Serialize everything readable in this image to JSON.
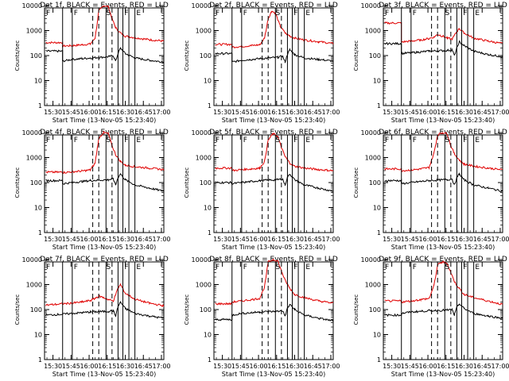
{
  "chart_data": [
    {
      "type": "line",
      "title": "Det 1f, BLACK = Events, RED = LLD",
      "xlabel": "Start Time (13-Nov-05 15:23:40)",
      "ylabel": "Counts/sec",
      "yscale": "log",
      "ylim": [
        1,
        10000
      ],
      "xlim": [
        "15:23",
        "17:02"
      ],
      "x_ticks": [
        "15:30",
        "15:45",
        "16:00",
        "16:15",
        "16:30",
        "16:45",
        "17:00"
      ],
      "y_ticks": [
        "1",
        "10",
        "100",
        "1000",
        "10000"
      ],
      "markers": [
        "F",
        "F",
        "S",
        "F",
        "E"
      ],
      "series": [
        {
          "name": "LLD",
          "color": "#e00000",
          "x": [
            "15:24",
            "15:38",
            "15:38",
            "15:46",
            "15:54",
            "16:01",
            "16:05",
            "16:08",
            "16:12",
            "16:16",
            "16:19",
            "16:22",
            "16:26",
            "16:30",
            "16:38",
            "16:50",
            "17:02"
          ],
          "values": [
            330,
            330,
            240,
            250,
            270,
            290,
            500,
            6000,
            10000,
            9000,
            3000,
            1300,
            800,
            600,
            520,
            430,
            380
          ]
        },
        {
          "name": "Events",
          "color": "#000000",
          "x": [
            "15:24",
            "15:38",
            "15:38",
            "15:46",
            "15:54",
            "16:01",
            "16:16",
            "16:20",
            "16:22",
            "16:24",
            "16:26",
            "16:30",
            "16:38",
            "16:50",
            "17:02"
          ],
          "values": [
            150,
            150,
            60,
            70,
            75,
            80,
            90,
            100,
            60,
            120,
            200,
            120,
            80,
            65,
            55
          ]
        }
      ]
    },
    {
      "type": "line",
      "title": "Det 2f, BLACK = Events, RED = LLD",
      "xlabel": "Start Time (13-Nov-05 15:23:40)",
      "ylabel": "Counts/sec",
      "yscale": "log",
      "ylim": [
        1,
        10000
      ],
      "xlim": [
        "15:23",
        "17:02"
      ],
      "x_ticks": [
        "15:30",
        "15:45",
        "16:00",
        "16:15",
        "16:30",
        "16:45",
        "17:00"
      ],
      "y_ticks": [
        "1",
        "10",
        "100",
        "1000",
        "10000"
      ],
      "markers": [
        "F",
        "F",
        "S",
        "F",
        "E"
      ],
      "series": [
        {
          "name": "LLD",
          "color": "#e00000",
          "x": [
            "15:24",
            "15:38",
            "15:38",
            "15:46",
            "15:54",
            "16:01",
            "16:05",
            "16:08",
            "16:11",
            "16:14",
            "16:18",
            "16:22",
            "16:26",
            "16:30",
            "16:38",
            "16:50",
            "17:02"
          ],
          "values": [
            280,
            280,
            220,
            230,
            250,
            270,
            500,
            3000,
            6000,
            5000,
            1500,
            800,
            600,
            500,
            420,
            360,
            300
          ]
        },
        {
          "name": "Events",
          "color": "#000000",
          "x": [
            "15:24",
            "15:38",
            "15:38",
            "15:46",
            "15:54",
            "16:01",
            "16:16",
            "16:20",
            "16:22",
            "16:24",
            "16:26",
            "16:30",
            "16:38",
            "16:50",
            "17:02"
          ],
          "values": [
            120,
            120,
            55,
            65,
            70,
            75,
            85,
            95,
            55,
            110,
            170,
            110,
            80,
            70,
            60
          ]
        }
      ]
    },
    {
      "type": "line",
      "title": "Det 3f, BLACK = Events, RED = LLD",
      "xlabel": "Start Time (13-Nov-05 15:23:40)",
      "ylabel": "Counts/sec",
      "yscale": "log",
      "ylim": [
        1,
        10000
      ],
      "xlim": [
        "15:23",
        "17:02"
      ],
      "x_ticks": [
        "15:30",
        "15:45",
        "16:00",
        "16:15",
        "16:30",
        "16:45",
        "17:00"
      ],
      "y_ticks": [
        "1",
        "10",
        "100",
        "1000",
        "10000"
      ],
      "markers": [
        "F",
        "F",
        "S",
        "F",
        "E"
      ],
      "series": [
        {
          "name": "LLD",
          "color": "#e00000",
          "x": [
            "15:24",
            "15:38",
            "15:38",
            "15:46",
            "15:54",
            "16:01",
            "16:05",
            "16:08",
            "16:12",
            "16:16",
            "16:20",
            "16:24",
            "16:26",
            "16:30",
            "16:38",
            "16:50",
            "17:02"
          ],
          "values": [
            2000,
            2000,
            350,
            380,
            420,
            480,
            550,
            700,
            600,
            500,
            450,
            900,
            1200,
            800,
            500,
            380,
            300
          ]
        },
        {
          "name": "Events",
          "color": "#000000",
          "x": [
            "15:24",
            "15:38",
            "15:38",
            "15:46",
            "15:54",
            "16:01",
            "16:16",
            "16:20",
            "16:22",
            "16:24",
            "16:26",
            "16:30",
            "16:38",
            "16:50",
            "17:02"
          ],
          "values": [
            300,
            300,
            120,
            130,
            140,
            150,
            160,
            170,
            100,
            200,
            350,
            250,
            150,
            110,
            90
          ]
        }
      ]
    },
    {
      "type": "line",
      "title": "Det 4f, BLACK = Events, RED = LLD",
      "xlabel": "Start Time (13-Nov-05 15:23:40)",
      "ylabel": "Counts/sec",
      "yscale": "log",
      "ylim": [
        1,
        10000
      ],
      "xlim": [
        "15:23",
        "17:02"
      ],
      "x_ticks": [
        "15:30",
        "15:45",
        "16:00",
        "16:15",
        "16:30",
        "16:45",
        "17:00"
      ],
      "y_ticks": [
        "1",
        "10",
        "100",
        "1000",
        "10000"
      ],
      "markers": [
        "F",
        "F",
        "S",
        "F",
        "E"
      ],
      "series": [
        {
          "name": "LLD",
          "color": "#e00000",
          "x": [
            "15:24",
            "15:38",
            "15:38",
            "15:46",
            "15:54",
            "16:01",
            "16:05",
            "16:08",
            "16:12",
            "16:16",
            "16:19",
            "16:22",
            "16:26",
            "16:30",
            "16:38",
            "16:50",
            "17:02"
          ],
          "values": [
            260,
            260,
            250,
            270,
            290,
            320,
            600,
            6000,
            10000,
            9000,
            3000,
            1300,
            700,
            500,
            430,
            380,
            330
          ]
        },
        {
          "name": "Events",
          "color": "#000000",
          "x": [
            "15:24",
            "15:38",
            "15:38",
            "15:46",
            "15:54",
            "16:01",
            "16:16",
            "16:20",
            "16:22",
            "16:24",
            "16:26",
            "16:30",
            "16:38",
            "16:50",
            "17:02"
          ],
          "values": [
            120,
            120,
            90,
            100,
            110,
            120,
            130,
            140,
            80,
            160,
            220,
            130,
            80,
            60,
            45
          ]
        }
      ]
    },
    {
      "type": "line",
      "title": "Det 5f, BLACK = Events, RED = LLD",
      "xlabel": "Start Time (13-Nov-05 15:23:40)",
      "ylabel": "Counts/sec",
      "yscale": "log",
      "ylim": [
        1,
        10000
      ],
      "xlim": [
        "15:23",
        "17:02"
      ],
      "x_ticks": [
        "15:30",
        "15:45",
        "16:00",
        "16:15",
        "16:30",
        "16:45",
        "17:00"
      ],
      "y_ticks": [
        "1",
        "10",
        "100",
        "1000",
        "10000"
      ],
      "markers": [
        "F",
        "F",
        "S",
        "F",
        "E"
      ],
      "series": [
        {
          "name": "LLD",
          "color": "#e00000",
          "x": [
            "15:24",
            "15:38",
            "15:38",
            "15:46",
            "15:54",
            "16:01",
            "16:05",
            "16:08",
            "16:12",
            "16:16",
            "16:19",
            "16:22",
            "16:26",
            "16:30",
            "16:38",
            "16:50",
            "17:02"
          ],
          "values": [
            380,
            380,
            300,
            330,
            350,
            380,
            700,
            5000,
            9000,
            7000,
            2500,
            1100,
            600,
            450,
            380,
            330,
            300
          ]
        },
        {
          "name": "Events",
          "color": "#000000",
          "x": [
            "15:24",
            "15:38",
            "15:38",
            "15:46",
            "15:54",
            "16:01",
            "16:16",
            "16:20",
            "16:22",
            "16:24",
            "16:26",
            "16:30",
            "16:38",
            "16:50",
            "17:02"
          ],
          "values": [
            100,
            100,
            90,
            100,
            110,
            120,
            130,
            140,
            80,
            160,
            220,
            130,
            80,
            60,
            45
          ]
        }
      ]
    },
    {
      "type": "line",
      "title": "Det 6f, BLACK = Events, RED = LLD",
      "xlabel": "Start Time (13-Nov-05 15:23:40)",
      "ylabel": "Counts/sec",
      "yscale": "log",
      "ylim": [
        1,
        10000
      ],
      "xlim": [
        "15:23",
        "17:02"
      ],
      "x_ticks": [
        "15:30",
        "15:45",
        "16:00",
        "16:15",
        "16:30",
        "16:45",
        "17:00"
      ],
      "y_ticks": [
        "1",
        "10",
        "100",
        "1000",
        "10000"
      ],
      "markers": [
        "F",
        "F",
        "S",
        "F",
        "E"
      ],
      "series": [
        {
          "name": "LLD",
          "color": "#e00000",
          "x": [
            "15:24",
            "15:38",
            "15:38",
            "15:46",
            "15:54",
            "16:01",
            "16:05",
            "16:08",
            "16:12",
            "16:16",
            "16:19",
            "16:22",
            "16:26",
            "16:30",
            "16:38",
            "16:50",
            "17:02"
          ],
          "values": [
            350,
            350,
            300,
            320,
            350,
            400,
            1500,
            8000,
            10000,
            9000,
            3000,
            1400,
            800,
            550,
            450,
            380,
            320
          ]
        },
        {
          "name": "Events",
          "color": "#000000",
          "x": [
            "15:24",
            "15:38",
            "15:38",
            "15:46",
            "15:54",
            "16:01",
            "16:16",
            "16:20",
            "16:22",
            "16:24",
            "16:26",
            "16:30",
            "16:38",
            "16:50",
            "17:02"
          ],
          "values": [
            120,
            120,
            90,
            100,
            110,
            120,
            130,
            140,
            80,
            160,
            220,
            130,
            80,
            60,
            45
          ]
        }
      ]
    },
    {
      "type": "line",
      "title": "Det 7f, BLACK = Events, RED = LLD",
      "xlabel": "Start Time (13-Nov-05 15:23:40)",
      "ylabel": "Counts/sec",
      "yscale": "log",
      "ylim": [
        1,
        10000
      ],
      "xlim": [
        "15:23",
        "17:02"
      ],
      "x_ticks": [
        "15:30",
        "15:45",
        "16:00",
        "16:15",
        "16:30",
        "16:45",
        "17:00"
      ],
      "y_ticks": [
        "1",
        "10",
        "100",
        "1000",
        "10000"
      ],
      "markers": [
        "F",
        "F",
        "S",
        "F",
        "E"
      ],
      "series": [
        {
          "name": "LLD",
          "color": "#e00000",
          "x": [
            "15:24",
            "15:38",
            "15:46",
            "15:54",
            "16:01",
            "16:05",
            "16:08",
            "16:12",
            "16:16",
            "16:20",
            "16:24",
            "16:26",
            "16:30",
            "16:38",
            "16:50",
            "17:02"
          ],
          "values": [
            150,
            170,
            180,
            200,
            230,
            280,
            350,
            300,
            250,
            220,
            700,
            1000,
            450,
            260,
            180,
            140
          ]
        },
        {
          "name": "Events",
          "color": "#000000",
          "x": [
            "15:24",
            "15:38",
            "15:46",
            "15:54",
            "16:01",
            "16:16",
            "16:20",
            "16:22",
            "16:24",
            "16:26",
            "16:30",
            "16:38",
            "16:50",
            "17:02"
          ],
          "values": [
            60,
            65,
            70,
            75,
            80,
            85,
            90,
            55,
            130,
            200,
            110,
            70,
            55,
            45
          ]
        }
      ]
    },
    {
      "type": "line",
      "title": "Det 8f, BLACK = Events, RED = LLD",
      "xlabel": "Start Time (13-Nov-05 15:23:40)",
      "ylabel": "Counts/sec",
      "yscale": "log",
      "ylim": [
        1,
        10000
      ],
      "xlim": [
        "15:23",
        "17:02"
      ],
      "x_ticks": [
        "15:30",
        "15:45",
        "16:00",
        "16:15",
        "16:30",
        "16:45",
        "17:00"
      ],
      "y_ticks": [
        "1",
        "10",
        "100",
        "1000",
        "10000"
      ],
      "markers": [
        "F",
        "F",
        "S",
        "F",
        "E"
      ],
      "series": [
        {
          "name": "LLD",
          "color": "#e00000",
          "x": [
            "15:24",
            "15:38",
            "15:38",
            "15:46",
            "15:54",
            "16:01",
            "16:05",
            "16:08",
            "16:12",
            "16:16",
            "16:19",
            "16:22",
            "16:26",
            "16:30",
            "16:38",
            "16:50",
            "17:02"
          ],
          "values": [
            170,
            170,
            200,
            220,
            250,
            280,
            800,
            8000,
            10000,
            9000,
            3500,
            1500,
            700,
            400,
            300,
            220,
            180
          ]
        },
        {
          "name": "Events",
          "color": "#000000",
          "x": [
            "15:24",
            "15:38",
            "15:38",
            "15:46",
            "15:54",
            "16:01",
            "16:16",
            "16:20",
            "16:22",
            "16:24",
            "16:26",
            "16:30",
            "16:38",
            "16:50",
            "17:02"
          ],
          "values": [
            40,
            40,
            60,
            70,
            75,
            80,
            85,
            90,
            55,
            110,
            160,
            100,
            60,
            45,
            35
          ]
        }
      ]
    },
    {
      "type": "line",
      "title": "Det 9f, BLACK = Events, RED = LLD",
      "xlabel": "Start Time (13-Nov-05 15:23:40)",
      "ylabel": "Counts/sec",
      "yscale": "log",
      "ylim": [
        1,
        10000
      ],
      "xlim": [
        "15:23",
        "17:02"
      ],
      "x_ticks": [
        "15:30",
        "15:45",
        "16:00",
        "16:15",
        "16:30",
        "16:45",
        "17:00"
      ],
      "y_ticks": [
        "1",
        "10",
        "100",
        "1000",
        "10000"
      ],
      "markers": [
        "F",
        "F",
        "S",
        "F",
        "E"
      ],
      "series": [
        {
          "name": "LLD",
          "color": "#e00000",
          "x": [
            "15:24",
            "15:38",
            "15:38",
            "15:46",
            "15:54",
            "16:01",
            "16:05",
            "16:08",
            "16:12",
            "16:16",
            "16:19",
            "16:22",
            "16:26",
            "16:30",
            "16:38",
            "16:50",
            "17:02"
          ],
          "values": [
            220,
            220,
            200,
            220,
            250,
            280,
            900,
            6000,
            8000,
            7000,
            3000,
            1300,
            700,
            400,
            300,
            220,
            160
          ]
        },
        {
          "name": "Events",
          "color": "#000000",
          "x": [
            "15:24",
            "15:38",
            "15:38",
            "15:46",
            "15:54",
            "16:01",
            "16:16",
            "16:20",
            "16:22",
            "16:24",
            "16:26",
            "16:30",
            "16:38",
            "16:50",
            "17:02"
          ],
          "values": [
            60,
            60,
            70,
            80,
            85,
            90,
            95,
            100,
            60,
            120,
            170,
            110,
            70,
            55,
            45
          ]
        }
      ]
    }
  ]
}
